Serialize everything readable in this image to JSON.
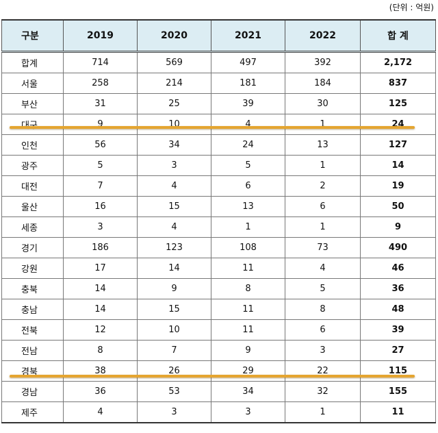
{
  "unit": "(단위 : 억원)",
  "table": {
    "header": [
      "구분",
      "2019",
      "2020",
      "2021",
      "2022",
      "합 계"
    ],
    "rows": [
      [
        "합계",
        "714",
        "569",
        "497",
        "392",
        "2,172"
      ],
      [
        "서울",
        "258",
        "214",
        "181",
        "184",
        "837"
      ],
      [
        "부산",
        "31",
        "25",
        "39",
        "30",
        "125"
      ],
      [
        "대구",
        "9",
        "10",
        "4",
        "1",
        "24"
      ],
      [
        "인천",
        "56",
        "34",
        "24",
        "13",
        "127"
      ],
      [
        "광주",
        "5",
        "3",
        "5",
        "1",
        "14"
      ],
      [
        "대전",
        "7",
        "4",
        "6",
        "2",
        "19"
      ],
      [
        "울산",
        "16",
        "15",
        "13",
        "6",
        "50"
      ],
      [
        "세종",
        "3",
        "4",
        "1",
        "1",
        "9"
      ],
      [
        "경기",
        "186",
        "123",
        "108",
        "73",
        "490"
      ],
      [
        "강원",
        "17",
        "14",
        "11",
        "4",
        "46"
      ],
      [
        "충북",
        "14",
        "9",
        "8",
        "5",
        "36"
      ],
      [
        "충남",
        "14",
        "15",
        "11",
        "8",
        "48"
      ],
      [
        "전북",
        "12",
        "10",
        "11",
        "6",
        "39"
      ],
      [
        "전남",
        "8",
        "7",
        "9",
        "3",
        "27"
      ],
      [
        "경북",
        "38",
        "26",
        "29",
        "22",
        "115"
      ],
      [
        "경남",
        "36",
        "53",
        "34",
        "32",
        "155"
      ],
      [
        "제주",
        "4",
        "3",
        "3",
        "1",
        "11"
      ]
    ]
  }
}
